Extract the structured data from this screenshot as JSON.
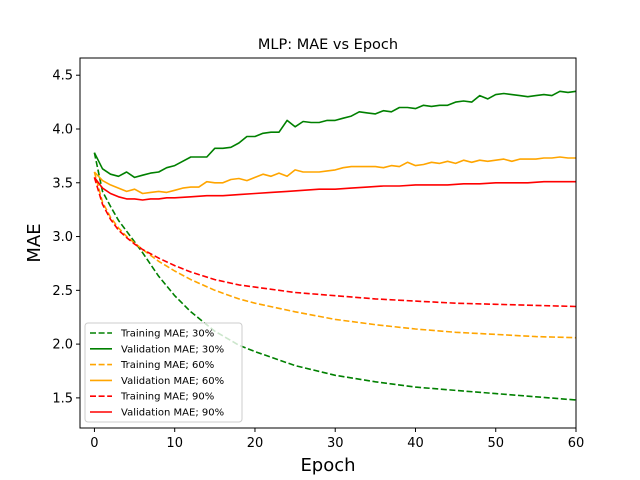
{
  "chart_data": {
    "type": "line",
    "title": "MLP: MAE vs Epoch",
    "xlabel": "Epoch",
    "ylabel": "MAE",
    "xlim": [
      -1.8,
      60
    ],
    "ylim": [
      1.22,
      4.66
    ],
    "xticks": [
      0,
      10,
      20,
      30,
      40,
      50,
      60
    ],
    "yticks": [
      1.5,
      2.0,
      2.5,
      3.0,
      3.5,
      4.0,
      4.5
    ],
    "xtick_labels": [
      "0",
      "10",
      "20",
      "30",
      "40",
      "50",
      "60"
    ],
    "ytick_labels": [
      "1.5",
      "2.0",
      "2.5",
      "3.0",
      "3.5",
      "4.0",
      "4.5"
    ],
    "grid": false,
    "legend_position": "lower-left",
    "series": [
      {
        "name": "Training MAE; 30%",
        "color": "#008000",
        "dash": "dashed",
        "x": [
          0,
          1,
          2,
          3,
          4,
          5,
          6,
          8,
          10,
          12,
          15,
          18,
          20,
          25,
          30,
          35,
          40,
          45,
          50,
          55,
          60
        ],
        "y": [
          3.78,
          3.42,
          3.28,
          3.15,
          3.05,
          2.95,
          2.85,
          2.63,
          2.45,
          2.3,
          2.12,
          1.99,
          1.93,
          1.8,
          1.71,
          1.65,
          1.6,
          1.57,
          1.54,
          1.51,
          1.48
        ]
      },
      {
        "name": "Validation MAE; 30%",
        "color": "#008000",
        "dash": "solid",
        "x": [
          0,
          1,
          2,
          3,
          4,
          5,
          6,
          7,
          8,
          9,
          10,
          11,
          12,
          13,
          14,
          15,
          16,
          17,
          18,
          19,
          20,
          21,
          22,
          23,
          24,
          25,
          26,
          27,
          28,
          29,
          30,
          31,
          32,
          33,
          34,
          35,
          36,
          37,
          38,
          39,
          40,
          41,
          42,
          43,
          44,
          45,
          46,
          47,
          48,
          49,
          50,
          51,
          52,
          53,
          54,
          55,
          56,
          57,
          58,
          59,
          60
        ],
        "y": [
          3.78,
          3.63,
          3.58,
          3.56,
          3.6,
          3.55,
          3.57,
          3.59,
          3.6,
          3.64,
          3.66,
          3.7,
          3.74,
          3.74,
          3.74,
          3.82,
          3.82,
          3.83,
          3.87,
          3.93,
          3.93,
          3.96,
          3.97,
          3.97,
          4.08,
          4.02,
          4.07,
          4.06,
          4.06,
          4.08,
          4.08,
          4.1,
          4.12,
          4.16,
          4.15,
          4.14,
          4.17,
          4.16,
          4.2,
          4.2,
          4.19,
          4.22,
          4.21,
          4.22,
          4.22,
          4.25,
          4.26,
          4.25,
          4.31,
          4.28,
          4.32,
          4.33,
          4.32,
          4.31,
          4.3,
          4.31,
          4.32,
          4.31,
          4.35,
          4.34,
          4.35
        ]
      },
      {
        "name": "Training MAE; 60%",
        "color": "#FFA500",
        "dash": "dashed",
        "x": [
          0,
          1,
          2,
          3,
          4,
          5,
          6,
          8,
          10,
          12,
          15,
          18,
          20,
          25,
          30,
          35,
          40,
          45,
          50,
          55,
          60
        ],
        "y": [
          3.6,
          3.32,
          3.18,
          3.08,
          3.0,
          2.94,
          2.88,
          2.77,
          2.68,
          2.6,
          2.5,
          2.42,
          2.38,
          2.3,
          2.23,
          2.18,
          2.14,
          2.11,
          2.09,
          2.07,
          2.06
        ]
      },
      {
        "name": "Validation MAE; 60%",
        "color": "#FFA500",
        "dash": "solid",
        "x": [
          0,
          1,
          2,
          3,
          4,
          5,
          6,
          7,
          8,
          9,
          10,
          11,
          12,
          13,
          14,
          15,
          16,
          17,
          18,
          19,
          20,
          21,
          22,
          23,
          24,
          25,
          26,
          27,
          28,
          29,
          30,
          31,
          32,
          33,
          34,
          35,
          36,
          37,
          38,
          39,
          40,
          41,
          42,
          43,
          44,
          45,
          46,
          47,
          48,
          49,
          50,
          51,
          52,
          53,
          54,
          55,
          56,
          57,
          58,
          59,
          60
        ],
        "y": [
          3.6,
          3.52,
          3.48,
          3.45,
          3.42,
          3.44,
          3.4,
          3.41,
          3.42,
          3.41,
          3.43,
          3.45,
          3.46,
          3.46,
          3.51,
          3.5,
          3.5,
          3.53,
          3.54,
          3.52,
          3.55,
          3.58,
          3.56,
          3.59,
          3.56,
          3.62,
          3.6,
          3.6,
          3.6,
          3.61,
          3.62,
          3.64,
          3.65,
          3.65,
          3.65,
          3.65,
          3.64,
          3.66,
          3.65,
          3.69,
          3.66,
          3.67,
          3.69,
          3.68,
          3.7,
          3.68,
          3.71,
          3.69,
          3.71,
          3.7,
          3.71,
          3.72,
          3.7,
          3.72,
          3.72,
          3.72,
          3.73,
          3.73,
          3.74,
          3.73,
          3.73
        ]
      },
      {
        "name": "Training MAE; 90%",
        "color": "#FF0000",
        "dash": "dashed",
        "x": [
          0,
          1,
          2,
          3,
          4,
          5,
          6,
          8,
          10,
          12,
          15,
          18,
          20,
          25,
          30,
          35,
          40,
          45,
          50,
          55,
          60
        ],
        "y": [
          3.55,
          3.3,
          3.16,
          3.06,
          2.99,
          2.93,
          2.88,
          2.8,
          2.73,
          2.67,
          2.6,
          2.55,
          2.53,
          2.48,
          2.45,
          2.42,
          2.4,
          2.38,
          2.37,
          2.36,
          2.35
        ]
      },
      {
        "name": "Validation MAE; 90%",
        "color": "#FF0000",
        "dash": "solid",
        "x": [
          0,
          1,
          2,
          3,
          4,
          5,
          6,
          7,
          8,
          9,
          10,
          12,
          14,
          16,
          18,
          20,
          22,
          24,
          26,
          28,
          30,
          32,
          34,
          36,
          38,
          40,
          42,
          44,
          46,
          48,
          50,
          52,
          54,
          56,
          58,
          60
        ],
        "y": [
          3.55,
          3.45,
          3.4,
          3.37,
          3.35,
          3.35,
          3.34,
          3.35,
          3.35,
          3.36,
          3.36,
          3.37,
          3.38,
          3.38,
          3.39,
          3.4,
          3.41,
          3.42,
          3.43,
          3.44,
          3.44,
          3.45,
          3.46,
          3.47,
          3.47,
          3.48,
          3.48,
          3.48,
          3.49,
          3.49,
          3.5,
          3.5,
          3.5,
          3.51,
          3.51,
          3.51
        ]
      }
    ]
  }
}
